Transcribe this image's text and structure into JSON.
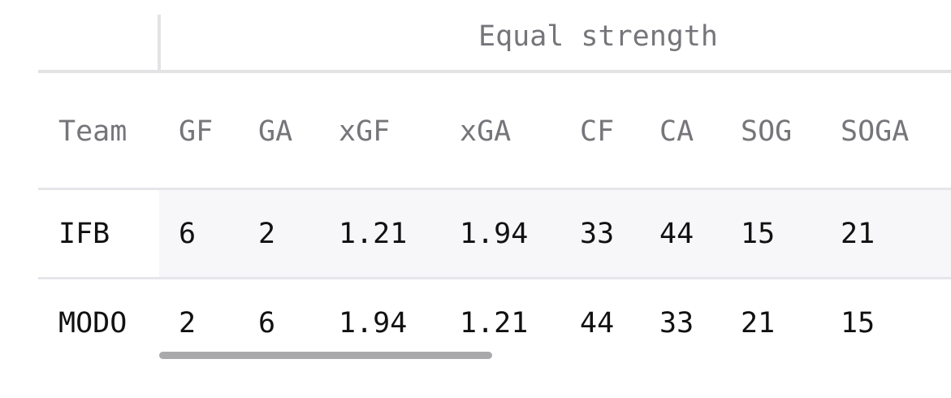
{
  "table": {
    "group_header": "Equal strength",
    "columns": [
      "Team",
      "GF",
      "GA",
      "xGF",
      "xGA",
      "CF",
      "CA",
      "SOG",
      "SOGA"
    ],
    "rows": [
      [
        "IFB",
        6,
        2,
        1.21,
        1.94,
        33,
        44,
        15,
        21
      ],
      [
        "MODO",
        2,
        6,
        1.94,
        1.21,
        44,
        33,
        21,
        15
      ]
    ]
  }
}
